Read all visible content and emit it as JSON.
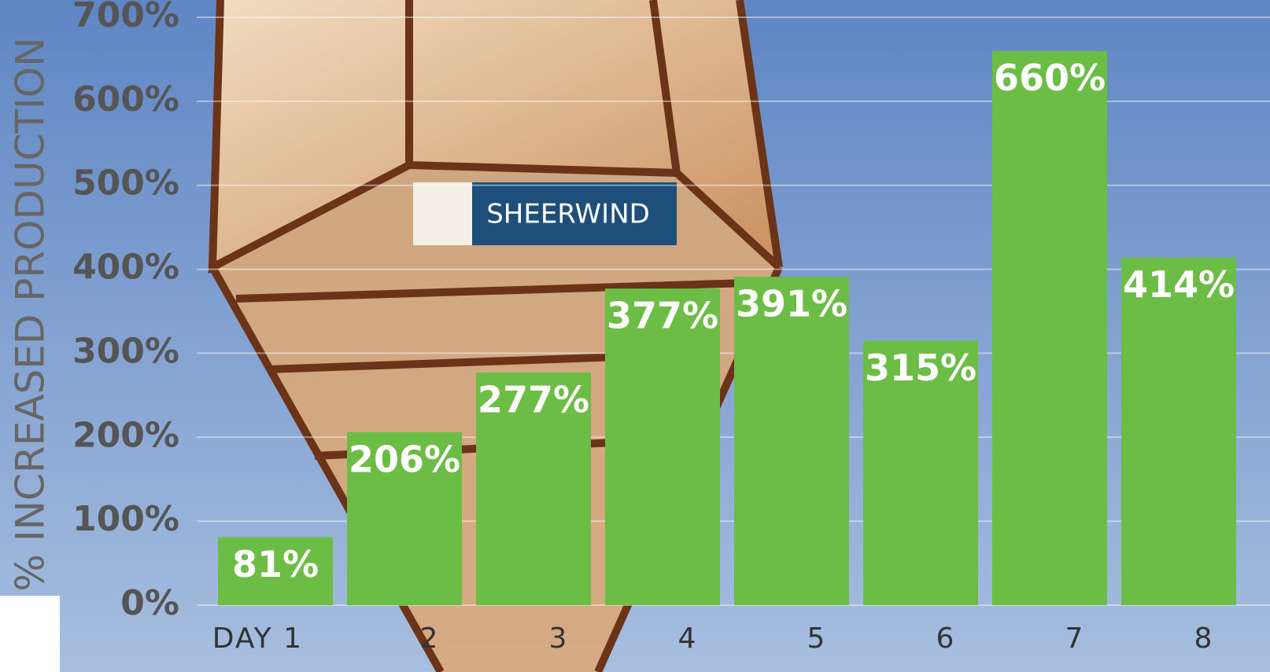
{
  "chart_data": {
    "type": "bar",
    "y_axis_label": "% INCREASED PRODUCTION",
    "sign": "SHEERWIND",
    "categories": [
      "DAY 1",
      "2",
      "3",
      "4",
      "5",
      "6",
      "7",
      "8"
    ],
    "values": [
      81,
      206,
      277,
      377,
      391,
      315,
      660,
      414
    ],
    "value_labels": [
      "81%",
      "206%",
      "277%",
      "377%",
      "391%",
      "315%",
      "660%",
      "414%"
    ],
    "color": "#6cbd45",
    "ylim": [
      0,
      700
    ],
    "yticks": [
      {
        "value": 0,
        "label": "0%"
      },
      {
        "value": 100,
        "label": "100%"
      },
      {
        "value": 200,
        "label": "200%"
      },
      {
        "value": 300,
        "label": "300%"
      },
      {
        "value": 400,
        "label": "400%"
      },
      {
        "value": 500,
        "label": "500%"
      },
      {
        "value": 600,
        "label": "600%"
      },
      {
        "value": 700,
        "label": "700%"
      }
    ],
    "grid": true
  }
}
